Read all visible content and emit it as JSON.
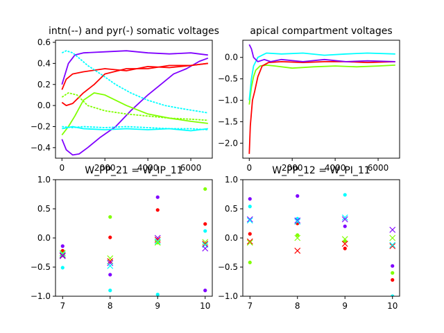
{
  "chart_data": [
    {
      "type": "line",
      "title": "intn(--) and pyr(-) somatic voltages",
      "xlim": [
        -300,
        7000
      ],
      "ylim": [
        -0.5,
        0.62
      ],
      "xticks": [
        0,
        2000,
        4000,
        6000
      ],
      "xtick_labels": [
        "0",
        "2000",
        "4000",
        "6000"
      ],
      "yticks": [
        -0.4,
        -0.2,
        0.0,
        0.2,
        0.4,
        0.6
      ],
      "ytick_labels": [
        "−0.4",
        "−0.2",
        "0.0",
        "0.2",
        "0.4",
        "0.6"
      ],
      "series": [
        {
          "style": "solid",
          "color": "#7f00ff",
          "x": [
            0,
            300,
            600,
            1000,
            2000,
            3000,
            4000,
            5000,
            6000,
            6800
          ],
          "y": [
            0.2,
            0.4,
            0.48,
            0.5,
            0.51,
            0.52,
            0.5,
            0.49,
            0.5,
            0.48
          ]
        },
        {
          "style": "solid",
          "color": "#7f00ff",
          "x": [
            0,
            200,
            500,
            800,
            1200,
            1800,
            2500,
            3200,
            4000,
            4600,
            5200,
            5800,
            6400,
            6800
          ],
          "y": [
            -0.32,
            -0.42,
            -0.47,
            -0.46,
            -0.4,
            -0.3,
            -0.2,
            -0.05,
            0.1,
            0.2,
            0.3,
            0.35,
            0.42,
            0.45
          ]
        },
        {
          "style": "solid",
          "color": "#ff0000",
          "x": [
            0,
            200,
            500,
            1000,
            1500,
            2000,
            3000,
            4000,
            5000,
            6000,
            6800
          ],
          "y": [
            0.03,
            0.0,
            0.02,
            0.12,
            0.2,
            0.3,
            0.35,
            0.35,
            0.38,
            0.38,
            0.4
          ]
        },
        {
          "style": "solid",
          "color": "#ff0000",
          "x": [
            0,
            200,
            500,
            1000,
            2000,
            3000,
            4000,
            5000,
            6000,
            6800
          ],
          "y": [
            0.15,
            0.25,
            0.3,
            0.32,
            0.35,
            0.33,
            0.37,
            0.36,
            0.38,
            0.4
          ]
        },
        {
          "style": "dashed",
          "color": "#00ffff",
          "x": [
            0,
            200,
            500,
            800,
            1200,
            1800,
            2500,
            3200,
            4000,
            4800,
            5600,
            6200,
            6800
          ],
          "y": [
            0.5,
            0.52,
            0.5,
            0.45,
            0.38,
            0.3,
            0.2,
            0.12,
            0.05,
            0.0,
            -0.03,
            -0.05,
            -0.07
          ]
        },
        {
          "style": "dashed",
          "color": "#80ff00",
          "x": [
            0,
            300,
            700,
            1200,
            2000,
            3000,
            4000,
            5000,
            6000,
            6800
          ],
          "y": [
            0.08,
            0.12,
            0.1,
            0.0,
            -0.05,
            -0.08,
            -0.1,
            -0.12,
            -0.13,
            -0.14
          ]
        },
        {
          "style": "solid",
          "color": "#80ff00",
          "x": [
            0,
            300,
            600,
            1000,
            1500,
            2000,
            3000,
            4000,
            5000,
            6000,
            6800
          ],
          "y": [
            -0.28,
            -0.2,
            -0.1,
            0.05,
            0.12,
            0.1,
            0.0,
            -0.08,
            -0.12,
            -0.15,
            -0.17
          ]
        },
        {
          "style": "dashed",
          "color": "#00ffff",
          "x": [
            0,
            500,
            1000,
            2000,
            3000,
            4000,
            5000,
            6000,
            6800
          ],
          "y": [
            -0.2,
            -0.21,
            -0.2,
            -0.21,
            -0.2,
            -0.21,
            -0.22,
            -0.22,
            -0.23
          ]
        },
        {
          "style": "solid",
          "color": "#00ffff",
          "x": [
            0,
            500,
            1000,
            2000,
            3000,
            4000,
            5000,
            6000,
            6800
          ],
          "y": [
            -0.22,
            -0.2,
            -0.22,
            -0.23,
            -0.22,
            -0.23,
            -0.22,
            -0.24,
            -0.22
          ]
        }
      ]
    },
    {
      "type": "line",
      "title": "apical compartment voltages",
      "xlim": [
        -300,
        7000
      ],
      "ylim": [
        -2.35,
        0.4
      ],
      "xticks": [
        0,
        2000,
        4000,
        6000
      ],
      "xtick_labels": [
        "0",
        "2000",
        "4000",
        "6000"
      ],
      "yticks": [
        -2.0,
        -1.5,
        -1.0,
        -0.5,
        0.0
      ],
      "ytick_labels": [
        "−2.0",
        "−1.5",
        "−1.0",
        "−0.5",
        "0.0"
      ],
      "series": [
        {
          "style": "solid",
          "color": "#80ff00",
          "x": [
            0,
            100,
            200,
            300,
            500,
            800,
            1200,
            2000,
            3000,
            4000,
            5000,
            6000,
            6800
          ],
          "y": [
            -1.1,
            -0.7,
            -0.45,
            -0.3,
            -0.2,
            -0.18,
            -0.2,
            -0.25,
            -0.22,
            -0.2,
            -0.22,
            -0.2,
            -0.18
          ]
        },
        {
          "style": "solid",
          "color": "#00ffff",
          "x": [
            0,
            100,
            200,
            400,
            800,
            1500,
            2500,
            3500,
            4500,
            5500,
            6800
          ],
          "y": [
            -1.0,
            -0.5,
            -0.2,
            0.0,
            0.1,
            0.08,
            0.1,
            0.05,
            0.08,
            0.1,
            0.08
          ]
        },
        {
          "style": "solid",
          "color": "#ff0000",
          "x": [
            0,
            50,
            150,
            250,
            400,
            600,
            900,
            1500,
            2500,
            3500,
            4500,
            5500,
            6800
          ],
          "y": [
            -2.25,
            -1.6,
            -1.0,
            -0.8,
            -0.45,
            -0.2,
            -0.12,
            -0.1,
            -0.12,
            -0.1,
            -0.1,
            -0.12,
            -0.1
          ]
        },
        {
          "style": "solid",
          "color": "#7f00ff",
          "x": [
            0,
            100,
            200,
            400,
            700,
            1000,
            1500,
            2500,
            3500,
            4500,
            5500,
            6800
          ],
          "y": [
            0.3,
            0.2,
            0.0,
            -0.1,
            -0.05,
            -0.1,
            -0.05,
            -0.1,
            -0.05,
            -0.1,
            -0.08,
            -0.1
          ]
        }
      ]
    },
    {
      "type": "scatter",
      "title": "W_PP_21 = W_IP_11",
      "xlim": [
        6.85,
        10.15
      ],
      "ylim": [
        -1.0,
        1.0
      ],
      "xticks": [
        7,
        8,
        9,
        10
      ],
      "xtick_labels": [
        "7",
        "8",
        "9",
        "10"
      ],
      "yticks": [
        -1.0,
        -0.5,
        0.0,
        0.5,
        1.0
      ],
      "ytick_labels": [
        "−1.0",
        "−0.5",
        "0.0",
        "0.5",
        "1.0"
      ],
      "dots": [
        {
          "x": 7,
          "y": -0.14,
          "color": "#7f00ff"
        },
        {
          "x": 7,
          "y": -0.22,
          "color": "#ff0000"
        },
        {
          "x": 7,
          "y": -0.3,
          "color": "#80ff00"
        },
        {
          "x": 7,
          "y": -0.51,
          "color": "#00ffff"
        },
        {
          "x": 8,
          "y": 0.36,
          "color": "#80ff00"
        },
        {
          "x": 8,
          "y": 0.01,
          "color": "#ff0000"
        },
        {
          "x": 8,
          "y": -0.63,
          "color": "#7f00ff"
        },
        {
          "x": 8,
          "y": -0.9,
          "color": "#00ffff"
        },
        {
          "x": 9,
          "y": 0.7,
          "color": "#7f00ff"
        },
        {
          "x": 9,
          "y": 0.48,
          "color": "#ff0000"
        },
        {
          "x": 9,
          "y": -0.08,
          "color": "#80ff00"
        },
        {
          "x": 9,
          "y": -0.97,
          "color": "#00ffff"
        },
        {
          "x": 10,
          "y": 0.84,
          "color": "#80ff00"
        },
        {
          "x": 10,
          "y": 0.24,
          "color": "#ff0000"
        },
        {
          "x": 10,
          "y": 0.12,
          "color": "#00ffff"
        },
        {
          "x": 10,
          "y": -0.9,
          "color": "#7f00ff"
        }
      ],
      "crosses": [
        {
          "x": 7,
          "y": -0.26,
          "color": "#80ff00"
        },
        {
          "x": 7,
          "y": -0.28,
          "color": "#00ffff"
        },
        {
          "x": 7,
          "y": -0.3,
          "color": "#ff0000"
        },
        {
          "x": 7,
          "y": -0.31,
          "color": "#7f00ff"
        },
        {
          "x": 8,
          "y": -0.35,
          "color": "#80ff00"
        },
        {
          "x": 8,
          "y": -0.4,
          "color": "#ff0000"
        },
        {
          "x": 8,
          "y": -0.43,
          "color": "#7f00ff"
        },
        {
          "x": 8,
          "y": -0.48,
          "color": "#00ffff"
        },
        {
          "x": 9,
          "y": 0.0,
          "color": "#7f00ff"
        },
        {
          "x": 9,
          "y": -0.03,
          "color": "#ff0000"
        },
        {
          "x": 9,
          "y": -0.06,
          "color": "#00ffff"
        },
        {
          "x": 9,
          "y": -0.08,
          "color": "#80ff00"
        },
        {
          "x": 10,
          "y": -0.07,
          "color": "#80ff00"
        },
        {
          "x": 10,
          "y": -0.1,
          "color": "#ff0000"
        },
        {
          "x": 10,
          "y": -0.12,
          "color": "#00ffff"
        },
        {
          "x": 10,
          "y": -0.18,
          "color": "#7f00ff"
        }
      ]
    },
    {
      "type": "scatter",
      "title": "W_PP_12 = W_PI_11",
      "xlim": [
        6.85,
        10.15
      ],
      "ylim": [
        -1.0,
        1.0
      ],
      "xticks": [
        7,
        8,
        9,
        10
      ],
      "xtick_labels": [
        "7",
        "8",
        "9",
        "10"
      ],
      "yticks": [
        -1.0,
        -0.5,
        0.0,
        0.5,
        1.0
      ],
      "ytick_labels": [
        "−1.0",
        "−0.5",
        "0.0",
        "0.5",
        "1.0"
      ],
      "dots": [
        {
          "x": 7,
          "y": 0.67,
          "color": "#7f00ff"
        },
        {
          "x": 7,
          "y": 0.54,
          "color": "#00ffff"
        },
        {
          "x": 7,
          "y": 0.07,
          "color": "#ff0000"
        },
        {
          "x": 7,
          "y": -0.42,
          "color": "#80ff00"
        },
        {
          "x": 8,
          "y": 0.72,
          "color": "#7f00ff"
        },
        {
          "x": 8,
          "y": 0.33,
          "color": "#00ffff"
        },
        {
          "x": 8,
          "y": 0.25,
          "color": "#ff0000"
        },
        {
          "x": 8,
          "y": 0.05,
          "color": "#80ff00"
        },
        {
          "x": 9,
          "y": 0.74,
          "color": "#00ffff"
        },
        {
          "x": 9,
          "y": 0.2,
          "color": "#7f00ff"
        },
        {
          "x": 9,
          "y": -0.05,
          "color": "#80ff00"
        },
        {
          "x": 9,
          "y": -0.18,
          "color": "#ff0000"
        },
        {
          "x": 10,
          "y": -0.48,
          "color": "#7f00ff"
        },
        {
          "x": 10,
          "y": -0.6,
          "color": "#80ff00"
        },
        {
          "x": 10,
          "y": -0.72,
          "color": "#ff0000"
        },
        {
          "x": 10,
          "y": -1.0,
          "color": "#00ffff"
        }
      ],
      "crosses": [
        {
          "x": 7,
          "y": 0.32,
          "color": "#7f00ff"
        },
        {
          "x": 7,
          "y": 0.3,
          "color": "#00ffff"
        },
        {
          "x": 7,
          "y": -0.06,
          "color": "#ff0000"
        },
        {
          "x": 7,
          "y": -0.08,
          "color": "#80ff00"
        },
        {
          "x": 8,
          "y": 0.3,
          "color": "#7f00ff"
        },
        {
          "x": 8,
          "y": 0.28,
          "color": "#00ffff"
        },
        {
          "x": 8,
          "y": 0.0,
          "color": "#80ff00"
        },
        {
          "x": 8,
          "y": -0.22,
          "color": "#ff0000"
        },
        {
          "x": 9,
          "y": 0.35,
          "color": "#00ffff"
        },
        {
          "x": 9,
          "y": 0.32,
          "color": "#7f00ff"
        },
        {
          "x": 9,
          "y": -0.02,
          "color": "#80ff00"
        },
        {
          "x": 9,
          "y": -0.1,
          "color": "#ff0000"
        },
        {
          "x": 10,
          "y": 0.14,
          "color": "#7f00ff"
        },
        {
          "x": 10,
          "y": 0.0,
          "color": "#80ff00"
        },
        {
          "x": 10,
          "y": -0.14,
          "color": "#ff0000"
        },
        {
          "x": 10,
          "y": -0.12,
          "color": "#00ffff"
        }
      ]
    }
  ]
}
